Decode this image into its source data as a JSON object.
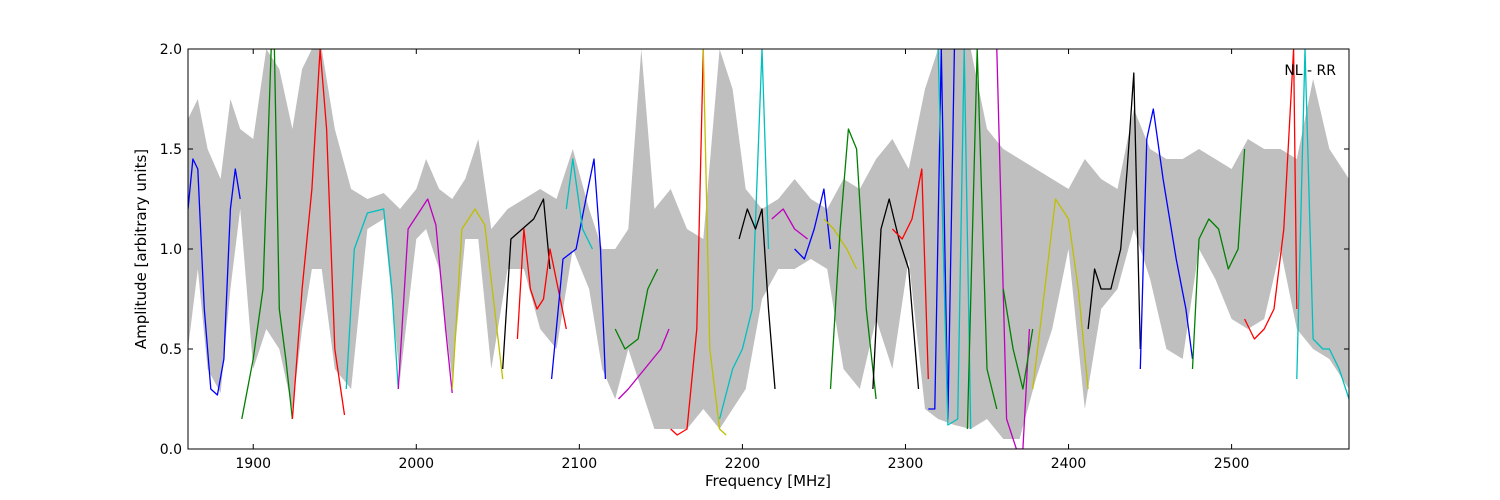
{
  "chart_data": {
    "type": "line",
    "title": "",
    "annotation": "NL - RR",
    "xlabel": "Frequency [MHz]",
    "ylabel": "Amplitude [arbitrary units]",
    "xlim": [
      1860,
      2572
    ],
    "ylim": [
      0,
      2.0
    ],
    "x_ticks": [
      1900,
      2000,
      2100,
      2200,
      2300,
      2400,
      2500
    ],
    "x_tick_labels": [
      "1900",
      "2000",
      "2100",
      "2200",
      "2300",
      "2400",
      "2500"
    ],
    "y_ticks": [
      0.0,
      0.5,
      1.0,
      1.5,
      2.0
    ],
    "y_tick_labels": [
      "0.0",
      "0.5",
      "1.0",
      "1.5",
      "2.0"
    ],
    "grid": false,
    "legend": "none",
    "envelope": {
      "color": "#bfbfbf",
      "x": [
        1860,
        1866,
        1872,
        1880,
        1886,
        1892,
        1900,
        1908,
        1916,
        1924,
        1930,
        1936,
        1942,
        1950,
        1960,
        1970,
        1980,
        1990,
        2000,
        2006,
        2014,
        2022,
        2030,
        2038,
        2046,
        2056,
        2066,
        2076,
        2086,
        2096,
        2106,
        2114,
        2122,
        2130,
        2138,
        2146,
        2156,
        2166,
        2176,
        2186,
        2194,
        2202,
        2212,
        2222,
        2232,
        2242,
        2252,
        2262,
        2272,
        2282,
        2292,
        2302,
        2312,
        2320,
        2330,
        2340,
        2350,
        2360,
        2370,
        2380,
        2390,
        2400,
        2410,
        2420,
        2430,
        2440,
        2450,
        2460,
        2470,
        2480,
        2490,
        2500,
        2510,
        2520,
        2530,
        2540,
        2550,
        2560,
        2572
      ],
      "upper": [
        1.65,
        1.75,
        1.5,
        1.35,
        1.75,
        1.6,
        1.55,
        2.0,
        1.9,
        1.6,
        1.9,
        2.0,
        2.0,
        1.6,
        1.3,
        1.25,
        1.28,
        1.2,
        1.3,
        1.45,
        1.3,
        1.25,
        1.35,
        1.55,
        1.1,
        1.2,
        1.25,
        1.3,
        1.25,
        1.5,
        1.2,
        1.0,
        1.0,
        1.1,
        2.0,
        1.2,
        1.3,
        1.1,
        1.05,
        2.0,
        1.8,
        1.3,
        1.2,
        1.25,
        1.35,
        1.25,
        1.2,
        1.35,
        1.3,
        1.45,
        1.55,
        1.4,
        1.8,
        2.0,
        2.0,
        2.0,
        1.6,
        1.5,
        1.45,
        1.4,
        1.35,
        1.3,
        1.45,
        1.35,
        1.3,
        1.7,
        1.5,
        1.45,
        1.45,
        1.5,
        1.45,
        1.4,
        1.55,
        1.5,
        1.5,
        1.45,
        1.85,
        1.5,
        1.35
      ],
      "lower": [
        0.5,
        0.9,
        0.4,
        0.28,
        0.8,
        1.2,
        0.4,
        0.6,
        0.5,
        0.2,
        0.6,
        0.9,
        0.9,
        0.4,
        0.3,
        1.1,
        1.15,
        0.35,
        1.05,
        1.1,
        0.9,
        0.35,
        1.05,
        1.05,
        0.4,
        0.9,
        0.9,
        0.6,
        0.5,
        1.0,
        0.8,
        0.4,
        0.25,
        0.5,
        0.3,
        0.1,
        0.1,
        0.1,
        0.2,
        0.1,
        0.2,
        0.3,
        0.75,
        0.9,
        0.9,
        0.95,
        0.9,
        0.4,
        0.3,
        0.65,
        0.4,
        0.95,
        0.2,
        0.15,
        0.12,
        0.1,
        0.15,
        0.05,
        0.05,
        0.35,
        0.6,
        1.0,
        0.2,
        0.7,
        0.8,
        1.1,
        0.85,
        0.5,
        0.45,
        1.0,
        0.85,
        0.65,
        0.6,
        0.65,
        1.0,
        0.6,
        0.5,
        0.45,
        0.3
      ]
    },
    "series": [
      {
        "color": "#0000ff",
        "x": [
          1860,
          1863,
          1866,
          1870,
          1874,
          1878,
          1882,
          1886,
          1889,
          1892
        ],
        "y": [
          1.2,
          1.45,
          1.4,
          0.7,
          0.3,
          0.27,
          0.45,
          1.2,
          1.4,
          1.25
        ]
      },
      {
        "color": "#008000",
        "x": [
          1893,
          1900,
          1906,
          1911,
          1913,
          1916,
          1920,
          1924
        ],
        "y": [
          0.15,
          0.45,
          0.8,
          2.0,
          2.0,
          0.7,
          0.45,
          0.15
        ]
      },
      {
        "color": "#ff0000",
        "x": [
          1924,
          1930,
          1936,
          1941,
          1945,
          1950,
          1956
        ],
        "y": [
          0.15,
          0.8,
          1.3,
          2.0,
          1.6,
          0.5,
          0.17
        ]
      },
      {
        "color": "#00bfbf",
        "x": [
          1957,
          1962,
          1970,
          1980,
          1985,
          1989
        ],
        "y": [
          0.3,
          1.0,
          1.18,
          1.2,
          0.8,
          0.3
        ]
      },
      {
        "color": "#bf00bf",
        "x": [
          1989,
          1995,
          2003,
          2007,
          2012,
          2018,
          2022
        ],
        "y": [
          0.3,
          1.1,
          1.2,
          1.25,
          1.12,
          0.6,
          0.28
        ]
      },
      {
        "color": "#bfbf00",
        "x": [
          2022,
          2028,
          2036,
          2042,
          2048,
          2053
        ],
        "y": [
          0.3,
          1.1,
          1.2,
          1.12,
          0.7,
          0.35
        ]
      },
      {
        "color": "#000000",
        "x": [
          2053,
          2058,
          2065,
          2072,
          2078,
          2082
        ],
        "y": [
          0.4,
          1.05,
          1.1,
          1.15,
          1.25,
          0.9
        ]
      },
      {
        "color": "#ff0000",
        "x": [
          2062,
          2066,
          2070,
          2074,
          2078,
          2082,
          2087,
          2092
        ],
        "y": [
          0.55,
          1.1,
          0.8,
          0.7,
          0.75,
          1.0,
          0.8,
          0.6
        ]
      },
      {
        "color": "#0000ff",
        "x": [
          2083,
          2090,
          2098,
          2104,
          2109,
          2113,
          2116
        ],
        "y": [
          0.35,
          0.95,
          1.0,
          1.25,
          1.45,
          1.0,
          0.35
        ]
      },
      {
        "color": "#00bfbf",
        "x": [
          2092,
          2096,
          2102,
          2108
        ],
        "y": [
          1.2,
          1.45,
          1.1,
          1.0
        ]
      },
      {
        "color": "#008000",
        "x": [
          2122,
          2128,
          2136,
          2142,
          2148
        ],
        "y": [
          0.6,
          0.5,
          0.55,
          0.8,
          0.9
        ]
      },
      {
        "color": "#bf00bf",
        "x": [
          2124,
          2130,
          2140,
          2150,
          2155
        ],
        "y": [
          0.25,
          0.3,
          0.4,
          0.5,
          0.6
        ]
      },
      {
        "color": "#ff0000",
        "x": [
          2156,
          2160,
          2166,
          2172,
          2176
        ],
        "y": [
          0.1,
          0.07,
          0.1,
          0.6,
          2.0
        ]
      },
      {
        "color": "#bfbf00",
        "x": [
          2176,
          2180,
          2186,
          2190
        ],
        "y": [
          2.0,
          0.5,
          0.1,
          0.07
        ]
      },
      {
        "color": "#00bfbf",
        "x": [
          2186,
          2194,
          2200,
          2206,
          2212,
          2216
        ],
        "y": [
          0.15,
          0.4,
          0.5,
          0.7,
          2.0,
          1.0
        ]
      },
      {
        "color": "#000000",
        "x": [
          2198,
          2203,
          2208,
          2212,
          2216,
          2220
        ],
        "y": [
          1.05,
          1.2,
          1.1,
          1.2,
          0.7,
          0.3
        ]
      },
      {
        "color": "#bf00bf",
        "x": [
          2218,
          2225,
          2232,
          2240
        ],
        "y": [
          1.15,
          1.2,
          1.1,
          1.05
        ]
      },
      {
        "color": "#0000ff",
        "x": [
          2232,
          2238,
          2244,
          2250,
          2254
        ],
        "y": [
          1.0,
          0.95,
          1.1,
          1.3,
          1.0
        ]
      },
      {
        "color": "#bfbf00",
        "x": [
          2250,
          2256,
          2264,
          2270
        ],
        "y": [
          1.15,
          1.1,
          1.0,
          0.9
        ]
      },
      {
        "color": "#008000",
        "x": [
          2254,
          2260,
          2265,
          2270,
          2276,
          2282
        ],
        "y": [
          0.3,
          1.1,
          1.6,
          1.5,
          0.7,
          0.25
        ]
      },
      {
        "color": "#000000",
        "x": [
          2280,
          2285,
          2290,
          2296,
          2302,
          2308
        ],
        "y": [
          0.3,
          1.1,
          1.25,
          1.05,
          0.9,
          0.3
        ]
      },
      {
        "color": "#ff0000",
        "x": [
          2292,
          2298,
          2304,
          2310,
          2314
        ],
        "y": [
          1.1,
          1.05,
          1.15,
          1.4,
          0.35
        ]
      },
      {
        "color": "#0000ff",
        "x": [
          2314,
          2318,
          2322,
          2326,
          2330
        ],
        "y": [
          0.2,
          0.2,
          2.0,
          0.15,
          2.0
        ]
      },
      {
        "color": "#00bfbf",
        "x": [
          2320,
          2326,
          2332,
          2336,
          2340
        ],
        "y": [
          2.0,
          0.12,
          0.15,
          2.0,
          0.1
        ]
      },
      {
        "color": "#008000",
        "x": [
          2338,
          2344,
          2350,
          2356
        ],
        "y": [
          0.1,
          2.0,
          0.4,
          0.2
        ]
      },
      {
        "color": "#bf00bf",
        "x": [
          2356,
          2362,
          2368,
          2372,
          2376
        ],
        "y": [
          2.0,
          0.15,
          0.0,
          0.0,
          0.6
        ]
      },
      {
        "color": "#008000",
        "x": [
          2360,
          2366,
          2372,
          2378
        ],
        "y": [
          0.8,
          0.5,
          0.3,
          0.6
        ]
      },
      {
        "color": "#bfbf00",
        "x": [
          2378,
          2384,
          2392,
          2400,
          2406,
          2412
        ],
        "y": [
          0.3,
          0.7,
          1.25,
          1.15,
          0.8,
          0.3
        ]
      },
      {
        "color": "#000000",
        "x": [
          2412,
          2416,
          2420,
          2426,
          2432,
          2436,
          2440,
          2444
        ],
        "y": [
          0.6,
          0.9,
          0.8,
          0.8,
          1.0,
          1.4,
          1.88,
          0.5
        ]
      },
      {
        "color": "#0000ff",
        "x": [
          2444,
          2448,
          2452,
          2458,
          2466,
          2472,
          2476
        ],
        "y": [
          0.4,
          1.55,
          1.7,
          1.35,
          0.95,
          0.7,
          0.45
        ]
      },
      {
        "color": "#008000",
        "x": [
          2476,
          2480,
          2486,
          2492,
          2498,
          2504,
          2508
        ],
        "y": [
          0.4,
          1.05,
          1.15,
          1.1,
          0.9,
          1.0,
          1.5
        ]
      },
      {
        "color": "#ff0000",
        "x": [
          2508,
          2514,
          2520,
          2526,
          2532,
          2538,
          2540
        ],
        "y": [
          0.65,
          0.55,
          0.6,
          0.7,
          1.1,
          2.0,
          0.7
        ]
      },
      {
        "color": "#00bfbf",
        "x": [
          2540,
          2545,
          2550,
          2556,
          2560,
          2566,
          2572
        ],
        "y": [
          0.35,
          2.0,
          0.55,
          0.5,
          0.5,
          0.4,
          0.25
        ]
      }
    ]
  }
}
